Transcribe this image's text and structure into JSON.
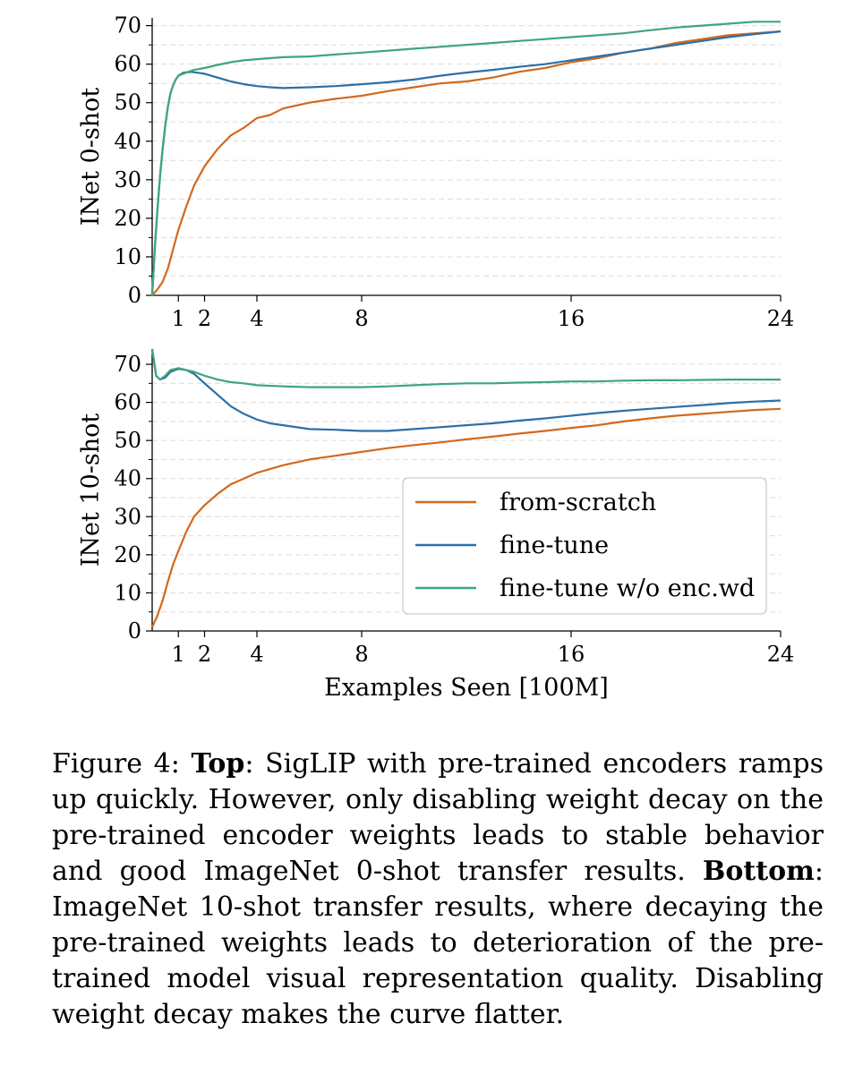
{
  "chart_data": [
    {
      "type": "line",
      "ylabel": "INet 0-shot",
      "xlabel": "",
      "xlim": [
        0,
        24
      ],
      "ylim": [
        0,
        72
      ],
      "xticks": [
        1,
        2,
        4,
        8,
        16,
        24
      ],
      "xtick_labels": [
        "1",
        "2",
        "4",
        "8",
        "16",
        "24"
      ],
      "yticks": [
        0,
        10,
        20,
        30,
        40,
        50,
        60,
        70
      ],
      "ytick_labels": [
        "0",
        "10",
        "20",
        "30",
        "40",
        "50",
        "60",
        "70"
      ],
      "grid": "horizontal dashed",
      "series": [
        {
          "name": "from-scratch",
          "color": "#d2691e",
          "x": [
            0,
            0.2,
            0.4,
            0.6,
            0.8,
            1,
            1.3,
            1.6,
            2,
            2.5,
            3,
            3.5,
            4,
            4.5,
            5,
            6,
            7,
            8,
            9,
            10,
            11,
            12,
            13,
            14,
            15,
            16,
            17,
            18,
            19,
            20,
            21,
            22,
            23,
            24
          ],
          "y": [
            0,
            1.5,
            3.5,
            7,
            12,
            17,
            23,
            28.5,
            33.5,
            38,
            41.5,
            43.5,
            46,
            46.8,
            48.5,
            50,
            51,
            51.8,
            53,
            54,
            55,
            55.5,
            56.5,
            58,
            59,
            60.5,
            61.5,
            63,
            64,
            65.5,
            66.5,
            67.5,
            68,
            68.5
          ]
        },
        {
          "name": "fine-tune",
          "color": "#2c6fa8",
          "x": [
            0,
            0.1,
            0.2,
            0.3,
            0.4,
            0.5,
            0.6,
            0.7,
            0.8,
            0.9,
            1,
            1.2,
            1.5,
            2,
            2.5,
            3,
            3.5,
            4,
            4.5,
            5,
            6,
            7,
            8,
            9,
            10,
            11,
            12,
            13,
            14,
            15,
            16,
            17,
            18,
            19,
            20,
            21,
            22,
            23,
            24
          ],
          "y": [
            0,
            12,
            22,
            31,
            38,
            44,
            49,
            52.5,
            54.5,
            56,
            57,
            57.8,
            58,
            57.5,
            56.5,
            55.5,
            54.8,
            54.3,
            54,
            53.8,
            54,
            54.3,
            54.8,
            55.3,
            56,
            57,
            57.8,
            58.5,
            59.3,
            60,
            61,
            62,
            63,
            64,
            65,
            66,
            67,
            67.8,
            68.5
          ]
        },
        {
          "name": "fine-tune w/o enc.wd",
          "color": "#3fa67a",
          "x": [
            0,
            0.1,
            0.2,
            0.3,
            0.4,
            0.5,
            0.6,
            0.7,
            0.8,
            0.9,
            1,
            1.3,
            1.6,
            2,
            2.5,
            3,
            3.5,
            4,
            5,
            6,
            7,
            8,
            9,
            10,
            11,
            12,
            13,
            14,
            15,
            16,
            17,
            18,
            19,
            20,
            21,
            22,
            23,
            24
          ],
          "y": [
            0,
            12,
            22,
            31,
            38,
            44,
            49,
            52.5,
            54.5,
            56,
            57,
            57.8,
            58.5,
            59,
            59.8,
            60.5,
            61,
            61.3,
            61.8,
            62,
            62.5,
            63,
            63.5,
            64,
            64.5,
            65,
            65.5,
            66,
            66.5,
            67,
            67.5,
            68,
            68.8,
            69.5,
            70,
            70.5,
            71,
            71
          ]
        }
      ]
    },
    {
      "type": "line",
      "ylabel": "INet 10-shot",
      "xlabel": "Examples Seen [100M]",
      "xlim": [
        0,
        24
      ],
      "ylim": [
        0,
        74
      ],
      "xticks": [
        1,
        2,
        4,
        8,
        16,
        24
      ],
      "xtick_labels": [
        "1",
        "2",
        "4",
        "8",
        "16",
        "24"
      ],
      "yticks": [
        0,
        10,
        20,
        30,
        40,
        50,
        60,
        70
      ],
      "ytick_labels": [
        "0",
        "10",
        "20",
        "30",
        "40",
        "50",
        "60",
        "70"
      ],
      "grid": "horizontal dashed",
      "legend": {
        "placement": "lower-right",
        "entries": [
          "from-scratch",
          "fine-tune",
          "fine-tune w/o enc.wd"
        ]
      },
      "series": [
        {
          "name": "from-scratch",
          "color": "#d2691e",
          "x": [
            0,
            0.2,
            0.4,
            0.6,
            0.8,
            1,
            1.3,
            1.6,
            2,
            2.5,
            3,
            3.5,
            4,
            4.5,
            5,
            6,
            7,
            8,
            9,
            10,
            11,
            12,
            13,
            14,
            15,
            16,
            17,
            18,
            19,
            20,
            21,
            22,
            23,
            24
          ],
          "y": [
            1,
            4,
            8,
            13,
            17.5,
            21,
            26,
            30,
            33,
            36,
            38.5,
            40,
            41.5,
            42.5,
            43.5,
            45,
            46,
            47,
            48,
            48.8,
            49.5,
            50.3,
            51,
            51.8,
            52.5,
            53.3,
            54,
            55,
            55.8,
            56.5,
            57,
            57.5,
            58,
            58.3
          ]
        },
        {
          "name": "fine-tune",
          "color": "#2c6fa8",
          "x": [
            0,
            0.15,
            0.3,
            0.5,
            0.7,
            1,
            1.3,
            1.6,
            2,
            2.5,
            3,
            3.5,
            4,
            4.5,
            5,
            6,
            7,
            8,
            9,
            10,
            11,
            12,
            13,
            14,
            15,
            16,
            17,
            18,
            19,
            20,
            21,
            22,
            23,
            24
          ],
          "y": [
            74,
            67,
            66,
            66.5,
            68,
            68.8,
            68.5,
            67.5,
            65,
            62,
            59,
            57,
            55.5,
            54.5,
            54,
            53,
            52.8,
            52.5,
            52.5,
            53,
            53.5,
            54,
            54.5,
            55.2,
            55.8,
            56.5,
            57.2,
            57.8,
            58.3,
            58.8,
            59.3,
            59.8,
            60.2,
            60.5
          ]
        },
        {
          "name": "fine-tune w/o enc.wd",
          "color": "#3fa67a",
          "x": [
            0,
            0.15,
            0.3,
            0.5,
            0.7,
            1,
            1.3,
            1.6,
            2,
            2.5,
            3,
            3.5,
            4,
            5,
            6,
            7,
            8,
            9,
            10,
            11,
            12,
            13,
            14,
            15,
            16,
            17,
            18,
            19,
            20,
            21,
            22,
            23,
            24
          ],
          "y": [
            74,
            67,
            66,
            67,
            68.5,
            69,
            68.5,
            68,
            67,
            66,
            65.3,
            65,
            64.5,
            64.2,
            64,
            64,
            64,
            64.2,
            64.5,
            64.8,
            65,
            65,
            65.2,
            65.3,
            65.5,
            65.5,
            65.7,
            65.8,
            65.8,
            65.9,
            66,
            66,
            66
          ]
        }
      ]
    }
  ],
  "caption": {
    "label": "Figure 4:",
    "top_bold": "Top",
    "top_text": ": SigLIP with pre-trained encoders ramps up quickly. However, only disabling weight decay on the pre-trained encoder weights leads to stable behavior and good ImageNet 0-shot transfer results.",
    "bottom_bold": "Bottom",
    "bottom_text": ": ImageNet 10-shot transfer results, where decaying the pre-trained weights leads to deterioration of the pre-trained model visual representation quality. Disabling weight decay makes the curve flatter."
  }
}
